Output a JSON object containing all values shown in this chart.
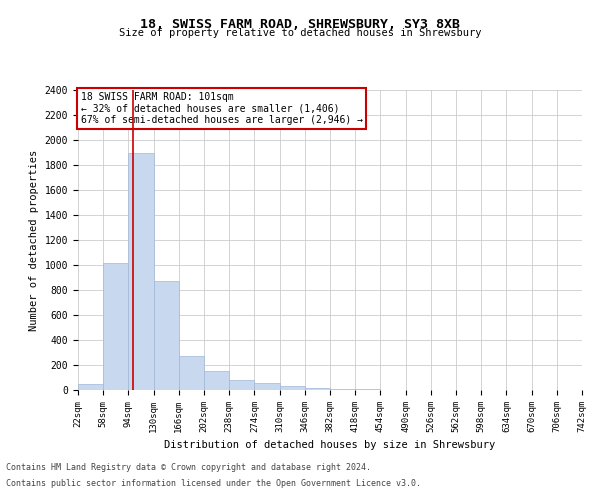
{
  "title1": "18, SWISS FARM ROAD, SHREWSBURY, SY3 8XB",
  "title2": "Size of property relative to detached houses in Shrewsbury",
  "xlabel": "Distribution of detached houses by size in Shrewsbury",
  "ylabel": "Number of detached properties",
  "footnote1": "Contains HM Land Registry data © Crown copyright and database right 2024.",
  "footnote2": "Contains public sector information licensed under the Open Government Licence v3.0.",
  "annotation_line1": "18 SWISS FARM ROAD: 101sqm",
  "annotation_line2": "← 32% of detached houses are smaller (1,406)",
  "annotation_line3": "67% of semi-detached houses are larger (2,946) →",
  "property_size": 101,
  "bar_color": "#c8d8ee",
  "bar_edgecolor": "#a0b8d8",
  "vline_color": "#cc0000",
  "annotation_edgecolor": "#cc0000",
  "background_color": "#ffffff",
  "grid_color": "#cccccc",
  "bin_edges": [
    22,
    58,
    94,
    130,
    166,
    202,
    238,
    274,
    310,
    346,
    382,
    418,
    454,
    490,
    526,
    562,
    598,
    634,
    670,
    706,
    742
  ],
  "bin_counts": [
    50,
    1020,
    1900,
    870,
    270,
    150,
    80,
    60,
    30,
    15,
    10,
    5,
    0,
    0,
    0,
    0,
    0,
    0,
    0,
    0
  ],
  "ylim": [
    0,
    2400
  ],
  "yticks": [
    0,
    200,
    400,
    600,
    800,
    1000,
    1200,
    1400,
    1600,
    1800,
    2000,
    2200,
    2400
  ]
}
